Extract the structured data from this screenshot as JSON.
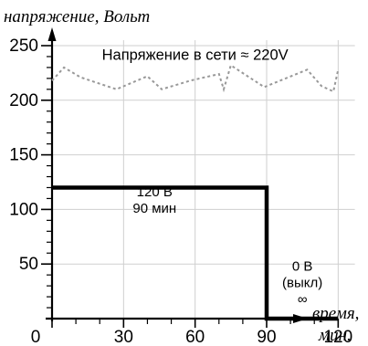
{
  "chart_data": {
    "type": "line",
    "ylabel": "напряжение, Вольт",
    "xlabel": [
      "время,",
      "мин."
    ],
    "x_ticks": [
      0,
      30,
      60,
      90,
      120
    ],
    "y_ticks": [
      50,
      100,
      150,
      200,
      250
    ],
    "xlim": [
      0,
      135
    ],
    "ylim": [
      0,
      260
    ],
    "grid": true,
    "series": [
      {
        "role": "output_voltage",
        "style": "solid",
        "color": "#000000",
        "points": [
          [
            0,
            120
          ],
          [
            90,
            120
          ],
          [
            90,
            0
          ],
          [
            120,
            0
          ]
        ]
      },
      {
        "role": "grid_voltage",
        "style": "dotted",
        "color": "#999999",
        "points": [
          [
            0,
            218
          ],
          [
            5,
            230
          ],
          [
            12,
            221
          ],
          [
            27,
            210
          ],
          [
            40,
            222
          ],
          [
            46,
            210
          ],
          [
            58,
            218
          ],
          [
            70,
            224
          ],
          [
            72,
            210
          ],
          [
            75,
            232
          ],
          [
            89,
            212
          ],
          [
            107,
            228
          ],
          [
            113,
            213
          ],
          [
            118,
            208
          ],
          [
            120,
            228
          ]
        ]
      }
    ],
    "annotations": [
      {
        "key": "grid",
        "lines": [
          "Напряжение в сети ≈ 220V"
        ],
        "x": 60,
        "y": 237,
        "class": "anno-top"
      },
      {
        "key": "on",
        "lines": [
          "120 В",
          "90 мин"
        ],
        "x": 43,
        "y": 112,
        "class": "anno"
      },
      {
        "key": "off",
        "lines": [
          "0 В",
          "(выкл)",
          "∞"
        ],
        "x": 105,
        "y": 44,
        "class": "anno"
      }
    ]
  }
}
